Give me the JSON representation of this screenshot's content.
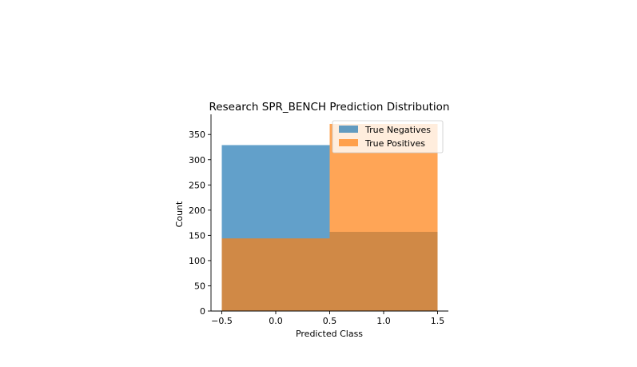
{
  "chart_data": {
    "type": "bar",
    "title": "Research SPR_BENCH Prediction Distribution",
    "xlabel": "Predicted Class",
    "ylabel": "Count",
    "xlim": [
      -0.5,
      1.5
    ],
    "ylim": [
      0,
      390
    ],
    "x_ticks": [
      -0.5,
      0.0,
      0.5,
      1.0,
      1.5
    ],
    "x_tick_labels": [
      "−0.5",
      "0.0",
      "0.5",
      "1.0",
      "1.5"
    ],
    "y_ticks": [
      0,
      50,
      100,
      150,
      200,
      250,
      300,
      350
    ],
    "y_tick_labels": [
      "0",
      "50",
      "100",
      "150",
      "200",
      "250",
      "300",
      "350"
    ],
    "bin_edges": [
      -0.5,
      0.5,
      1.5
    ],
    "series": [
      {
        "name": "True Negatives",
        "values": [
          329,
          157
        ],
        "color": "#1f77b4",
        "alpha": 0.7
      },
      {
        "name": "True Positives",
        "values": [
          144,
          371
        ],
        "color": "#ff7f0e",
        "alpha": 0.7
      }
    ],
    "legend_position": "top-right",
    "grid": false
  }
}
